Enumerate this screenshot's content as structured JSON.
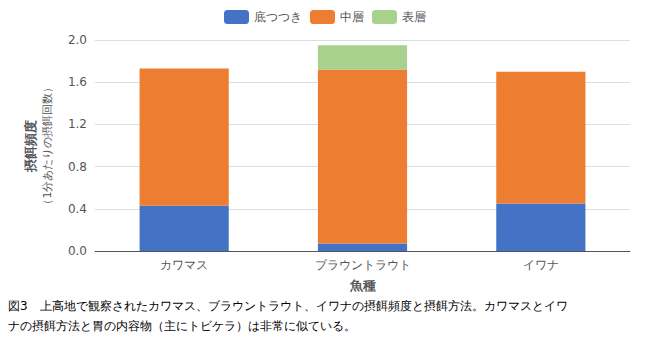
{
  "chart_data": {
    "type": "bar",
    "stacked": true,
    "categories": [
      "カワマス",
      "ブラウントラウト",
      "イワナ"
    ],
    "series": [
      {
        "name": "底つつき",
        "color": "#4472c4",
        "values": [
          0.43,
          0.07,
          0.45
        ]
      },
      {
        "name": "中層",
        "color": "#ed7d31",
        "values": [
          1.3,
          1.65,
          1.25
        ]
      },
      {
        "name": "表層",
        "color": "#a9d18e",
        "values": [
          0.0,
          0.23,
          0.0
        ]
      }
    ],
    "xlabel": "魚種",
    "ylabel": [
      "摂餌頻度",
      "（1分あたりの摂餌回数）"
    ],
    "caption": [
      "図3　上高地で観察されたカワマス、ブラウントラウト、イワナの摂餌頻度と摂餌方法。カワマスとイワ",
      "ナの摂餌方法と胃の内容物（主にトビケラ）は非常に似ている。"
    ],
    "ylim": [
      0.0,
      2.0
    ],
    "yticks": [
      {
        "value": 0,
        "label": "0.0"
      },
      0.4,
      0.8,
      1.2,
      1.6,
      {
        "value": 2,
        "label": "2.0"
      }
    ],
    "grid": true,
    "legend": "top"
  }
}
